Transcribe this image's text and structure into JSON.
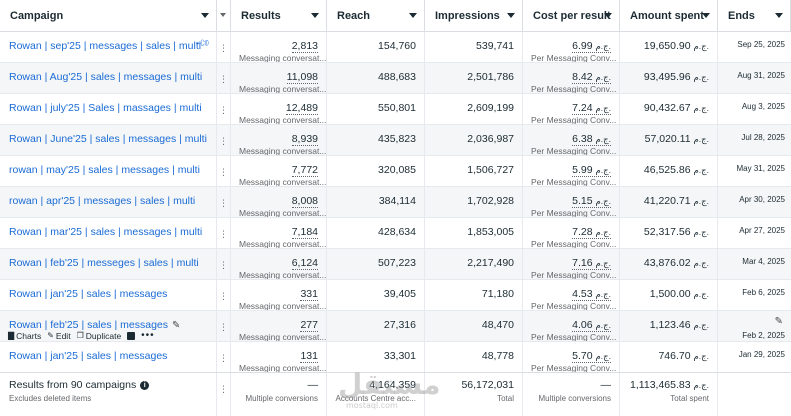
{
  "header": {
    "campaign": "Campaign",
    "results": "Results",
    "reach": "Reach",
    "impressions": "Impressions",
    "cost_per_result": "Cost per result",
    "amount_spent": "Amount spent",
    "ends": "Ends"
  },
  "currency": "ج.م.",
  "result_type": "Messaging conversat...",
  "cpr_type": "Per Messaging Conv...",
  "row_actions": {
    "charts": "Charts",
    "edit": "Edit",
    "duplicate": "Duplicate"
  },
  "rows": [
    {
      "name": "Rowan | sep'25 | messages | sales | multi",
      "results": "2,813",
      "reach": "154,760",
      "impressions": "539,741",
      "cpr": "6.99",
      "spent": "19,650.90",
      "ends": "Sep 25, 2025"
    },
    {
      "name": "Rowan | Aug'25 | sales | messages | multi",
      "results": "11,098",
      "reach": "488,683",
      "impressions": "2,501,786",
      "cpr": "8.42",
      "spent": "93,495.96",
      "ends": "Aug 31, 2025"
    },
    {
      "name": "Rowan | july'25 | Sales | massages | multi",
      "results": "12,489",
      "reach": "550,801",
      "impressions": "2,609,199",
      "cpr": "7.24",
      "spent": "90,432.67",
      "ends": "Aug 3, 2025"
    },
    {
      "name": "Rowan | June'25 | sales | messages | multi",
      "results": "8,939",
      "reach": "435,823",
      "impressions": "2,036,987",
      "cpr": "6.38",
      "spent": "57,020.11",
      "ends": "Jul 28, 2025"
    },
    {
      "name": "rowan | may'25 | sales | messages | multi",
      "results": "7,772",
      "reach": "320,085",
      "impressions": "1,506,727",
      "cpr": "5.99",
      "spent": "46,525.86",
      "ends": "May 31, 2025"
    },
    {
      "name": "rowan | apr'25 | messages | sales | multi",
      "results": "8,008",
      "reach": "384,114",
      "impressions": "1,702,928",
      "cpr": "5.15",
      "spent": "41,220.71",
      "ends": "Apr 30, 2025"
    },
    {
      "name": "Rowan | mar'25 | sales | messages | multi",
      "results": "7,184",
      "reach": "428,634",
      "impressions": "1,853,005",
      "cpr": "7.28",
      "spent": "52,317.56",
      "ends": "Apr 27, 2025"
    },
    {
      "name": "Rowan | feb'25 | messeges | sales | multi",
      "results": "6,124",
      "reach": "507,223",
      "impressions": "2,217,490",
      "cpr": "7.16",
      "spent": "43,876.02",
      "ends": "Mar 4, 2025"
    },
    {
      "name": "Rowan | jan'25 | sales | messages",
      "results": "331",
      "reach": "39,405",
      "impressions": "71,180",
      "cpr": "4.53",
      "spent": "1,500.00",
      "ends": "Feb 6, 2025"
    },
    {
      "name": "Rowan | feb'25 | sales | messages",
      "results": "277",
      "reach": "27,316",
      "impressions": "48,470",
      "cpr": "4.06",
      "spent": "1,123.46",
      "ends": "Feb 2, 2025"
    },
    {
      "name": "Rowan | jan'25 | sales | messages",
      "results": "131",
      "reach": "33,301",
      "impressions": "48,778",
      "cpr": "5.70",
      "spent": "746.70",
      "ends": "Jan 29, 2025"
    }
  ],
  "footer": {
    "title": "Results from 90 campaigns",
    "desc": "Excludes deleted items",
    "results_main": "—",
    "results_sub": "Multiple conversions",
    "reach_main": "4,164,359",
    "reach_sub": "Accounts Centre acc...",
    "impressions_main": "56,172,031",
    "impressions_sub": "Total",
    "cpr_main": "—",
    "cpr_sub": "Multiple conversions",
    "spent_main": "1,113,465.83",
    "spent_sub": "Total spent"
  },
  "watermark": {
    "main": "مستقل",
    "sub": "mostaql.com"
  }
}
